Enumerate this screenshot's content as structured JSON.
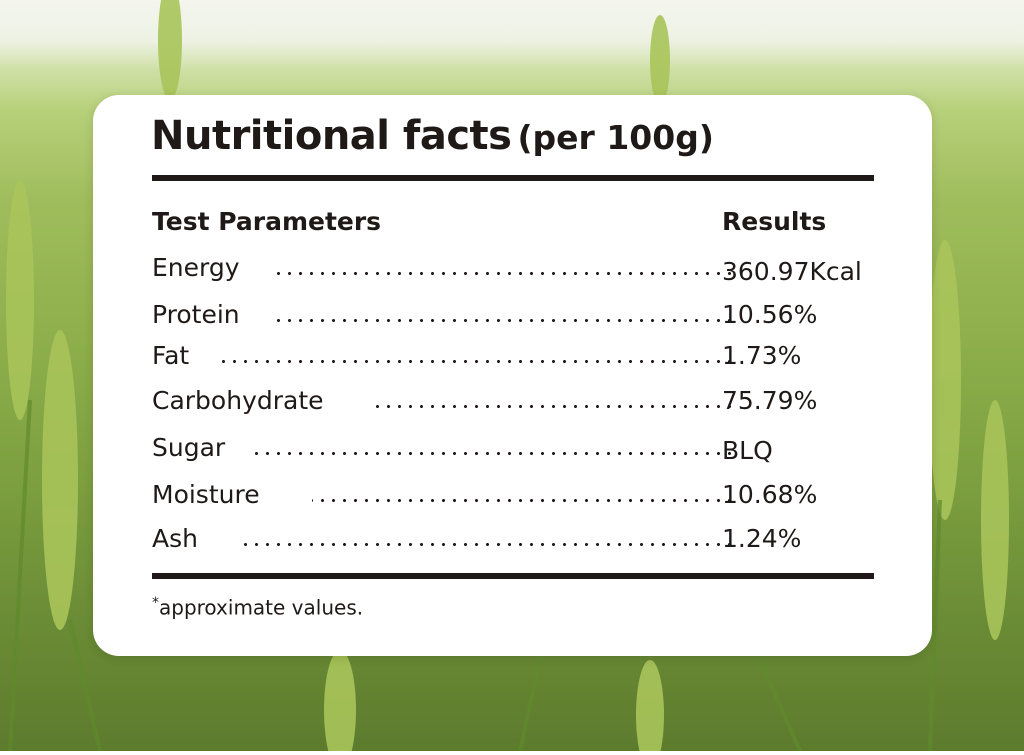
{
  "title": {
    "main": "Nutritional facts",
    "sub": "(per 100g)"
  },
  "headers": {
    "parameter": "Test Parameters",
    "result": "Results"
  },
  "rows": [
    {
      "name": "Energy",
      "value": "360.97Kcal"
    },
    {
      "name": "Protein",
      "value": "10.56%"
    },
    {
      "name": "Fat",
      "value": "1.73%"
    },
    {
      "name": "Carbohydrate",
      "value": "75.79%"
    },
    {
      "name": "Sugar",
      "value": "BLQ"
    },
    {
      "name": "Moisture",
      "value": "10.68%"
    },
    {
      "name": "Ash",
      "value": "1.24%"
    }
  ],
  "footnote": {
    "mark": "*",
    "text": "approximate values."
  },
  "colors": {
    "text": "#1f1a17",
    "card": "#ffffff",
    "field": "#8fb04c"
  }
}
